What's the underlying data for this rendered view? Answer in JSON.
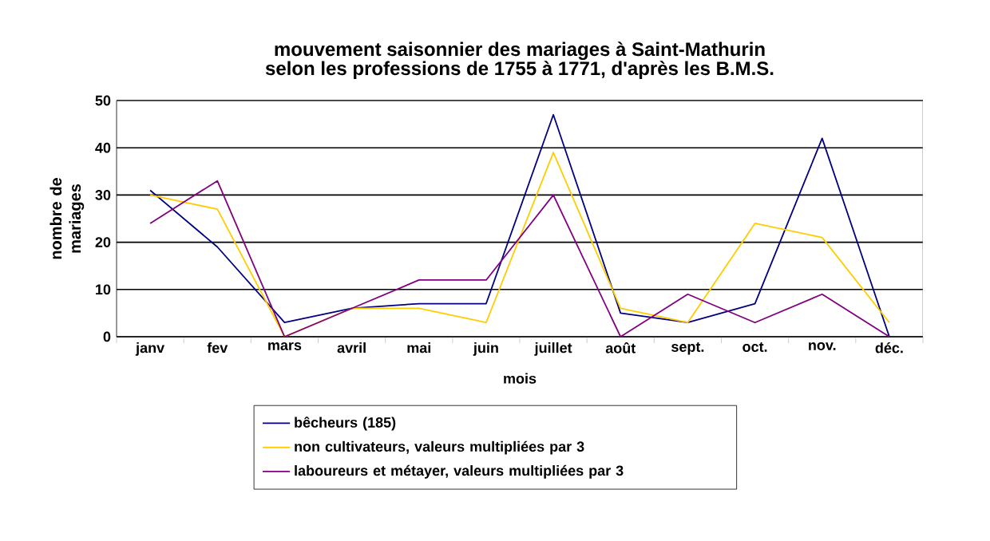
{
  "chart_data": {
    "type": "line",
    "title": "mouvement saisonnier des mariages à Saint-Mathurin selon les professions de 1755 à 1771, d'après les B.M.S.",
    "xlabel": "mois",
    "ylabel": "nombre de mariages",
    "categories": [
      "janv",
      "fev",
      "mars",
      "avril",
      "mai",
      "juin",
      "juillet",
      "août",
      "sept.",
      "oct.",
      "nov.",
      "déc."
    ],
    "series": [
      {
        "name": "bêcheurs (185)",
        "color": "#000080",
        "values": [
          31,
          19,
          3,
          6,
          7,
          7,
          47,
          5,
          3,
          7,
          42,
          0
        ]
      },
      {
        "name": "non cultivateurs, valeurs multipliées par 3",
        "color": "#ffcc00",
        "values": [
          30,
          27,
          0,
          6,
          6,
          3,
          39,
          6,
          3,
          24,
          21,
          3
        ]
      },
      {
        "name": "laboureurs et métayer, valeurs multipliées par 3",
        "color": "#800080",
        "values": [
          24,
          33,
          0,
          6,
          12,
          12,
          30,
          0,
          9,
          3,
          9,
          0
        ]
      }
    ],
    "ylim": [
      0,
      50
    ],
    "yticks": [
      0,
      10,
      20,
      30,
      40,
      50
    ],
    "grid": "y",
    "legend": "bottom",
    "marker": "none",
    "line_style": "solid"
  }
}
